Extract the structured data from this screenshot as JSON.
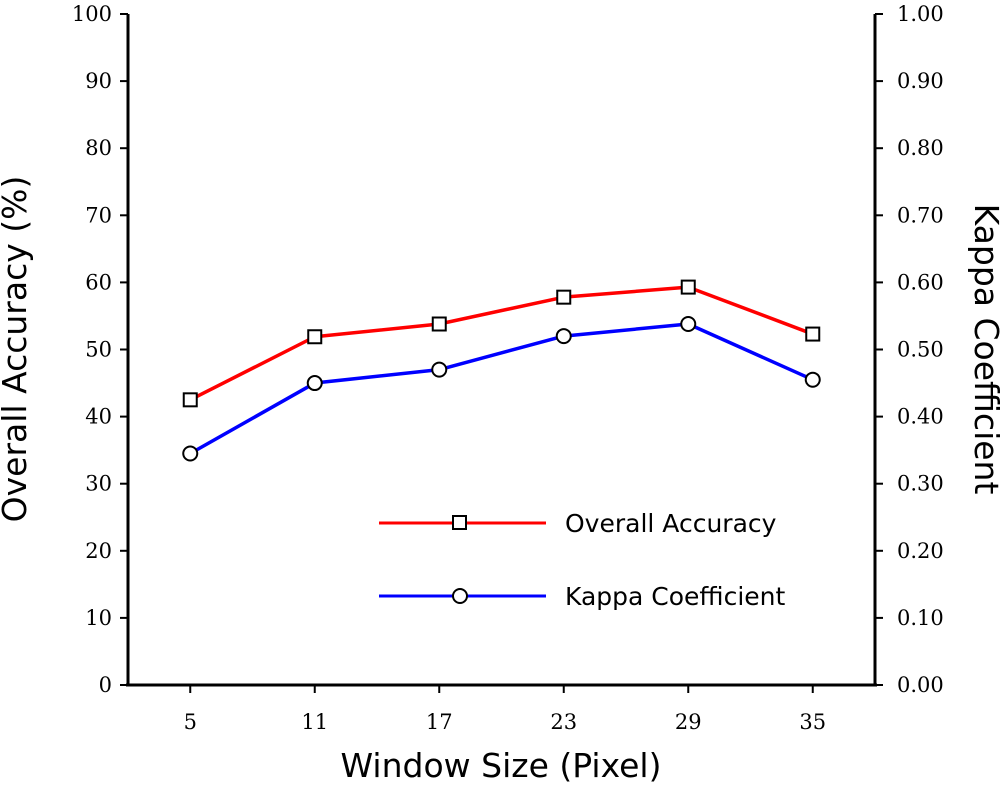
{
  "chart_data": {
    "type": "line",
    "title": "",
    "xlabel": "Window Size (Pixel)",
    "ylabel": "Overall Accuracy (%)",
    "y2label": "Kappa Coefficient",
    "categories": [
      "5",
      "11",
      "17",
      "23",
      "29",
      "35"
    ],
    "x": [
      5,
      11,
      17,
      23,
      29,
      35
    ],
    "xlim": [
      2,
      38
    ],
    "ylim": [
      0,
      100
    ],
    "y2lim": [
      0,
      1
    ],
    "y_ticks": [
      0,
      10,
      20,
      30,
      40,
      50,
      60,
      70,
      80,
      90,
      100
    ],
    "y_tick_labels": [
      "0",
      "10",
      "20",
      "30",
      "40",
      "50",
      "60",
      "70",
      "80",
      "90",
      "100"
    ],
    "y2_ticks": [
      0,
      0.1,
      0.2,
      0.3,
      0.4,
      0.5,
      0.6,
      0.7,
      0.8,
      0.9,
      1.0
    ],
    "y2_tick_labels": [
      "0.00",
      "0.10",
      "0.20",
      "0.30",
      "0.40",
      "0.50",
      "0.60",
      "0.70",
      "0.80",
      "0.90",
      "1.00"
    ],
    "grid": false,
    "legend_position": "bottom-right",
    "series": [
      {
        "name": "Overall Accuracy",
        "axis": "left",
        "color": "#ff0000",
        "marker": "square",
        "values": [
          42.5,
          51.9,
          53.8,
          57.8,
          59.3,
          52.3
        ]
      },
      {
        "name": "Kappa Coefficient",
        "axis": "right",
        "color": "#0000ff",
        "marker": "circle",
        "values": [
          0.345,
          0.45,
          0.47,
          0.52,
          0.538,
          0.455
        ]
      }
    ]
  }
}
